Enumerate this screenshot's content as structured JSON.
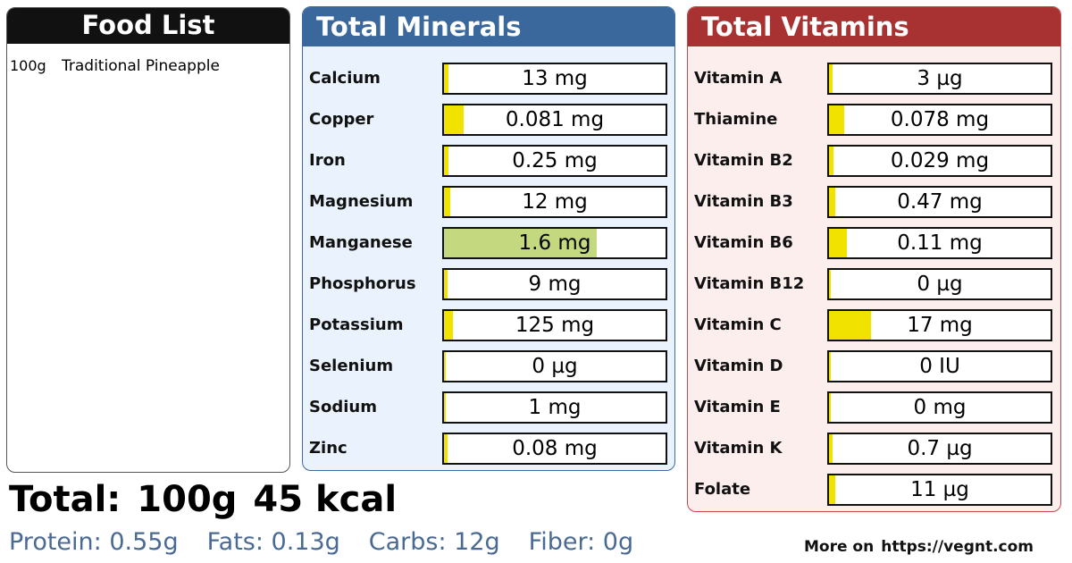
{
  "food_list": {
    "title": "Food List",
    "items": [
      {
        "qty": "100g",
        "name": "Traditional Pineapple"
      }
    ]
  },
  "minerals": {
    "title": "Total Minerals",
    "rows": [
      {
        "label": "Calcium",
        "value": "13 mg",
        "level": 0.02
      },
      {
        "label": "Copper",
        "value": "0.081 mg",
        "level": 0.09
      },
      {
        "label": "Iron",
        "value": "0.25 mg",
        "level": 0.02
      },
      {
        "label": "Magnesium",
        "value": "12 mg",
        "level": 0.03
      },
      {
        "label": "Manganese",
        "value": "1.6 mg",
        "level": 0.69,
        "highlight": true
      },
      {
        "label": "Phosphorus",
        "value": "9 mg",
        "level": 0.01
      },
      {
        "label": "Potassium",
        "value": "125 mg",
        "level": 0.04
      },
      {
        "label": "Selenium",
        "value": "0 µg",
        "level": 0
      },
      {
        "label": "Sodium",
        "value": "1 mg",
        "level": 0
      },
      {
        "label": "Zinc",
        "value": "0.08 mg",
        "level": 0.01
      }
    ]
  },
  "vitamins": {
    "title": "Total Vitamins",
    "rows": [
      {
        "label": "Vitamin A",
        "value": "3 µg",
        "level": 0.004
      },
      {
        "label": "Thiamine",
        "value": "0.078 mg",
        "level": 0.07
      },
      {
        "label": "Vitamin B2",
        "value": "0.029 mg",
        "level": 0.02
      },
      {
        "label": "Vitamin B3",
        "value": "0.47 mg",
        "level": 0.03
      },
      {
        "label": "Vitamin B6",
        "value": "0.11 mg",
        "level": 0.08
      },
      {
        "label": "Vitamin B12",
        "value": "0 µg",
        "level": 0
      },
      {
        "label": "Vitamin C",
        "value": "17 mg",
        "level": 0.19
      },
      {
        "label": "Vitamin D",
        "value": "0 IU",
        "level": 0
      },
      {
        "label": "Vitamin E",
        "value": "0 mg",
        "level": 0
      },
      {
        "label": "Vitamin K",
        "value": "0.7 µg",
        "level": 0.005
      },
      {
        "label": "Folate",
        "value": "11 µg",
        "level": 0.03
      }
    ]
  },
  "totals": {
    "label": "Total:",
    "weight": "100g",
    "energy": "45 kcal"
  },
  "macros": {
    "protein": "Protein: 0.55g",
    "fats": "Fats: 0.13g",
    "carbs": "Carbs: 12g",
    "fiber": "Fiber: 0g"
  },
  "footer": {
    "more_label": "More on",
    "url": "https://vegnt.com"
  },
  "colors": {
    "minerals_header": "#3a679c",
    "vitamins_header": "#a83232",
    "bar_fill": "#f2e200",
    "bar_fill_highlight": "#c3d87f",
    "macros_text": "#4a6a94"
  }
}
